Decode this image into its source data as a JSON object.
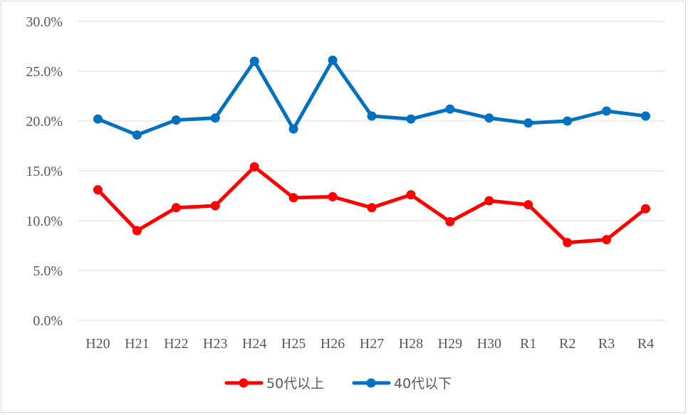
{
  "chart_data": {
    "type": "line",
    "title": "",
    "xlabel": "",
    "ylabel": "",
    "categories": [
      "H20",
      "H21",
      "H22",
      "H23",
      "H24",
      "H25",
      "H26",
      "H27",
      "H28",
      "H29",
      "H30",
      "R1",
      "R2",
      "R3",
      "R4"
    ],
    "y_ticks": [
      "0.0%",
      "5.0%",
      "10.0%",
      "15.0%",
      "20.0%",
      "25.0%",
      "30.0%"
    ],
    "ylim": [
      0,
      30
    ],
    "grid": true,
    "legend_position": "bottom",
    "series": [
      {
        "name": "50代以上",
        "color": "#ff0000",
        "values": [
          13.1,
          9.0,
          11.3,
          11.5,
          15.4,
          12.3,
          12.4,
          11.3,
          12.6,
          9.9,
          12.0,
          11.6,
          7.8,
          8.1,
          11.2
        ]
      },
      {
        "name": "40代以下",
        "color": "#0070c0",
        "values": [
          20.2,
          18.6,
          20.1,
          20.3,
          26.0,
          19.2,
          26.1,
          20.5,
          20.2,
          21.2,
          20.3,
          19.8,
          20.0,
          21.0,
          20.5
        ]
      }
    ]
  }
}
